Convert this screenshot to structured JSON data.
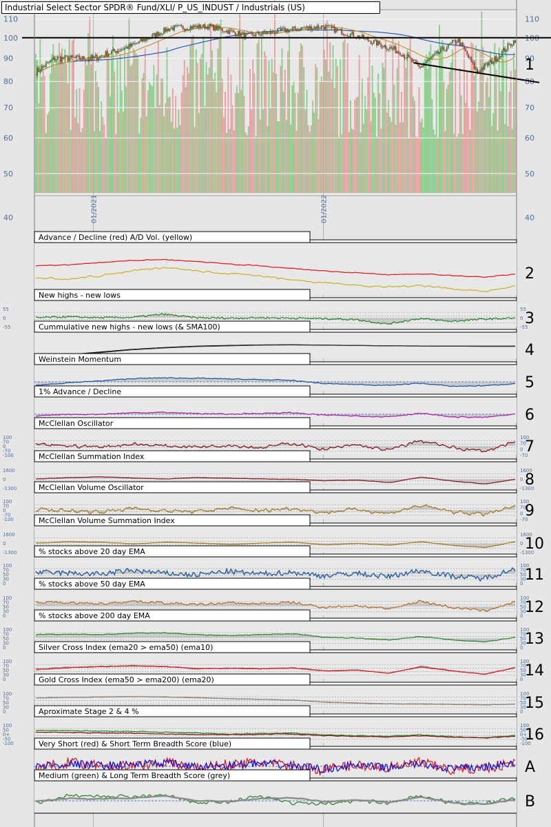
{
  "header": {
    "title": "Industrial Select Sector SPDR® Fund/XLI/ P_US_INDUST / Industrials (US)"
  },
  "price_axis": {
    "ticks": [
      110,
      100,
      90,
      80,
      70,
      60,
      50,
      40
    ],
    "date_ticks": [
      "01/2021",
      "01/2022"
    ]
  },
  "panels": [
    {
      "num": "2",
      "title": "Advance / Decline (red) A/D Vol. (yellow)",
      "left_ticks": [],
      "right_ticks": []
    },
    {
      "num": "3",
      "title": "New highs - new lows",
      "left_ticks": [
        "55",
        "0",
        "-55"
      ],
      "right_ticks": [
        "55",
        "0",
        "-55"
      ]
    },
    {
      "num": "4",
      "title": "Cummulative new highs - new lows (& SMA100)",
      "left_ticks": [],
      "right_ticks": []
    },
    {
      "num": "5",
      "title": "Weinstein Momentum",
      "left_ticks": [],
      "right_ticks": []
    },
    {
      "num": "6",
      "title": "1% Advance / Decline",
      "left_ticks": [],
      "right_ticks": []
    },
    {
      "num": "7",
      "title": "McClellan Oscillator",
      "left_ticks": [
        "100",
        "70",
        "0",
        "-70",
        "-100"
      ],
      "right_ticks": [
        "100",
        "70",
        "0",
        "-70"
      ]
    },
    {
      "num": "8",
      "title": "McClellan Summation Index",
      "left_ticks": [
        "1600",
        "0",
        "-1300"
      ],
      "right_ticks": [
        "1600",
        "0",
        "-1300"
      ]
    },
    {
      "num": "9",
      "title": "McClellan Volume Oscillator",
      "left_ticks": [
        "100",
        "70",
        "0",
        "-70",
        "-100"
      ],
      "right_ticks": [
        "100",
        "70",
        "0",
        "-70"
      ]
    },
    {
      "num": "10",
      "title": "McClellan Volume Summation Index",
      "left_ticks": [
        "1600",
        "0",
        "-1300"
      ],
      "right_ticks": [
        "1600",
        "0",
        "-1300"
      ]
    },
    {
      "num": "11",
      "title": "% stocks above 20 day EMA",
      "left_ticks": [
        "100",
        "70",
        "50",
        "30",
        "0"
      ],
      "right_ticks": [
        "100",
        "70",
        "50",
        "30",
        "0"
      ]
    },
    {
      "num": "12",
      "title": "% stocks above 50 day EMA",
      "left_ticks": [
        "100",
        "70",
        "50",
        "30",
        "0"
      ],
      "right_ticks": [
        "100",
        "70",
        "50",
        "30",
        "0"
      ]
    },
    {
      "num": "13",
      "title": "% stocks above 200 day EMA",
      "left_ticks": [
        "100",
        "70",
        "50",
        "30",
        "0"
      ],
      "right_ticks": [
        "100",
        "70",
        "50",
        "30",
        "0"
      ]
    },
    {
      "num": "14",
      "title": "Silver Cross Index (ema20 > ema50) (ema10)",
      "left_ticks": [
        "100",
        "70",
        "50",
        "30",
        "0"
      ],
      "right_ticks": [
        "100",
        "70",
        "50",
        "30",
        "0"
      ]
    },
    {
      "num": "15",
      "title": "Gold Cross Index (ema50 > ema200) (ema20)",
      "left_ticks": [
        "100",
        "70",
        "50",
        "30",
        "0"
      ],
      "right_ticks": [
        "100",
        "70",
        "50",
        "30",
        "0"
      ]
    },
    {
      "num": "16",
      "title": "Aproximate Stage 2 & 4 %",
      "left_ticks": [
        "100",
        "50",
        "0+",
        "-50",
        "-100"
      ],
      "right_ticks": [
        "100",
        "50",
        "0+",
        "-50",
        "-100"
      ]
    },
    {
      "num": "A",
      "title": "Very Short (red) & Short Term Breadth Score (blue)",
      "left_ticks": [],
      "right_ticks": []
    },
    {
      "num": "B",
      "title": "Medium (green) & Long Term Breadth Score (grey)",
      "left_ticks": [],
      "right_ticks": []
    }
  ],
  "colors": {
    "price_up": "#2e8b2e",
    "price_down": "#c0392b",
    "ma_short": "#c8962e",
    "ma_long": "#2a55c0",
    "vol_up": "#8ecf8e",
    "vol_down": "#e6a3a3",
    "red": "#e02020",
    "yellow": "#c8b42a",
    "green": "#2a8a2a",
    "blue": "#1f5aa8",
    "purple": "#b020b0",
    "darkred": "#8b1a1a",
    "olive": "#a07d1c",
    "orange": "#b8712a",
    "grey": "#8c8c8c"
  },
  "chart_data": [
    {
      "type": "line",
      "title": "Industrial Select Sector SPDR® Fund/XLI/ P_US_INDUST / Industrials (US)",
      "scale": "log",
      "ylim": [
        38,
        115
      ],
      "x": [
        "2020-10",
        "2020-11",
        "2021-01",
        "2021-03",
        "2021-05",
        "2021-07",
        "2021-09",
        "2021-11",
        "2022-01",
        "2022-03",
        "2022-05",
        "2022-06",
        "2022-08",
        "2022-09",
        "2022-10",
        "2022-11"
      ],
      "series": [
        {
          "name": "price",
          "values": [
            84,
            90,
            90,
            96,
            105,
            106,
            101,
            104,
            106,
            100,
            93,
            86,
            99,
            84,
            90,
            99
          ]
        }
      ],
      "reference_lines": [
        100
      ],
      "trendline": {
        "from": [
          "2022-05",
          88
        ],
        "to": [
          "2022-11",
          81
        ]
      }
    },
    {
      "type": "line",
      "title": "Advance / Decline (red) A/D Vol. (yellow)",
      "series": [
        {
          "name": "Advance / Decline",
          "values": [
            66,
            68,
            72,
            78,
            80,
            76,
            70,
            66,
            60,
            54,
            50,
            46,
            48,
            44,
            40,
            48
          ]
        },
        {
          "name": "A/D Vol.",
          "values": [
            40,
            36,
            44,
            56,
            62,
            54,
            48,
            44,
            34,
            28,
            22,
            18,
            22,
            14,
            8,
            20
          ]
        }
      ]
    },
    {
      "type": "line",
      "title": "Medium (green) & Long Term Breadth Score (grey)",
      "series": [
        {
          "name": "Medium",
          "values": [
            40,
            72,
            70,
            68,
            78,
            40,
            45,
            70,
            40,
            38,
            52,
            40,
            72,
            40,
            38,
            62
          ]
        },
        {
          "name": "Long Term",
          "values": [
            50,
            60,
            58,
            62,
            70,
            50,
            48,
            60,
            62,
            46,
            54,
            44,
            66,
            40,
            36,
            56
          ]
        }
      ]
    }
  ]
}
